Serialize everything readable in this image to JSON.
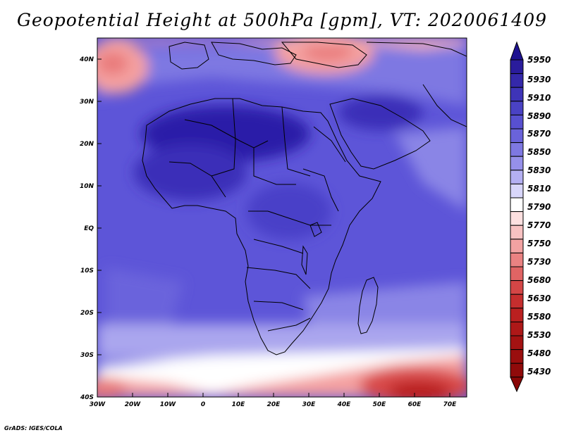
{
  "title": "Geopotential Height at 500hPa [gpm], VT: 2020061409",
  "credit": "GrADS: IGES/COLA",
  "lat_labels": [
    "40N",
    "30N",
    "20N",
    "10N",
    "EQ",
    "10S",
    "20S",
    "30S",
    "40S"
  ],
  "lon_labels": [
    "30W",
    "20W",
    "10W",
    "0",
    "10E",
    "20E",
    "30E",
    "40E",
    "50E",
    "60E",
    "70E"
  ],
  "legend_levels": [
    "5950",
    "5930",
    "5910",
    "5890",
    "5870",
    "5850",
    "5830",
    "5810",
    "5790",
    "5770",
    "5750",
    "5730",
    "5680",
    "5630",
    "5580",
    "5530",
    "5480",
    "5430"
  ],
  "colors": {
    "deep_blue": "#2c1ea8",
    "mid_blue": "#5d55d8",
    "light_blue": "#8a85e6",
    "white": "#ffffff",
    "light_red": "#f4a0a0",
    "deep_red": "#b81b1b"
  }
}
